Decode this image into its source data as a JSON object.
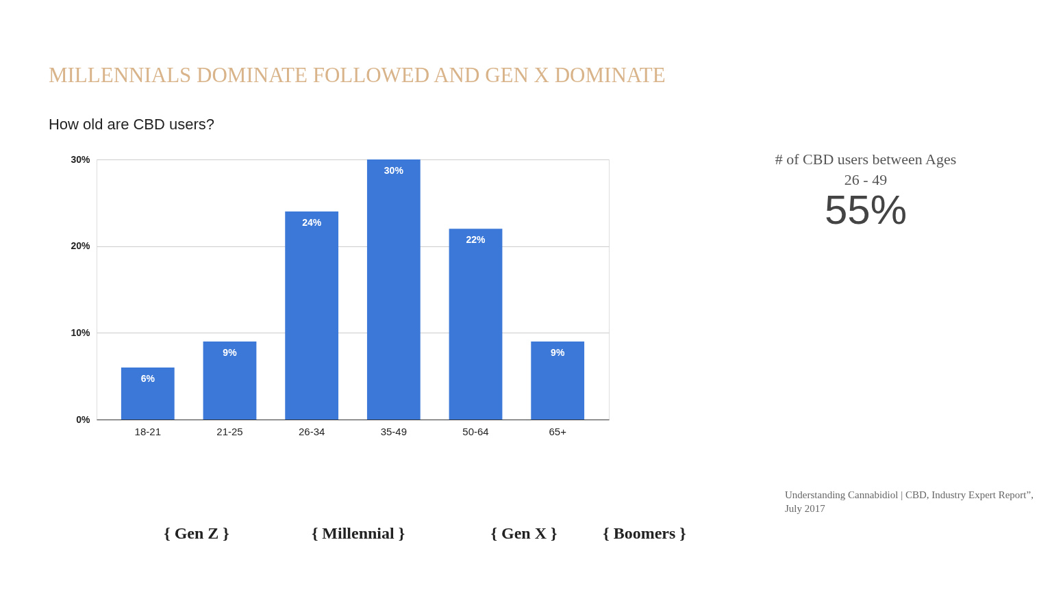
{
  "chart_data": {
    "type": "bar",
    "title": "MILLENNIALS DOMINATE FOLLOWED AND GEN X DOMINATE",
    "subtitle": "How old are CBD users?",
    "categories": [
      "18-21",
      "21-25",
      "26-34",
      "35-49",
      "50-64",
      "65+"
    ],
    "values": [
      6,
      9,
      24,
      30,
      22,
      9
    ],
    "color": "#3c78d8",
    "ylim": [
      0,
      30
    ],
    "yticks": [
      {
        "value": 0,
        "label": "0%"
      },
      {
        "value": 10,
        "label": "10%"
      },
      {
        "value": 20,
        "label": "20%"
      },
      {
        "value": 30,
        "label": "30%"
      }
    ],
    "grid": "y",
    "value_labels": [
      "6%",
      "9%",
      "24%",
      "30%",
      "22%",
      "9%"
    ],
    "annotations": [
      "# of CBD users between Ages 26 - 49",
      "55%",
      "{ Gen Z }",
      "{ Millennial }",
      "{ Gen X }",
      "{ Boomers }",
      "Understanding Cannabidiol | CBD, Industry Expert Report”, July 2017"
    ]
  }
}
